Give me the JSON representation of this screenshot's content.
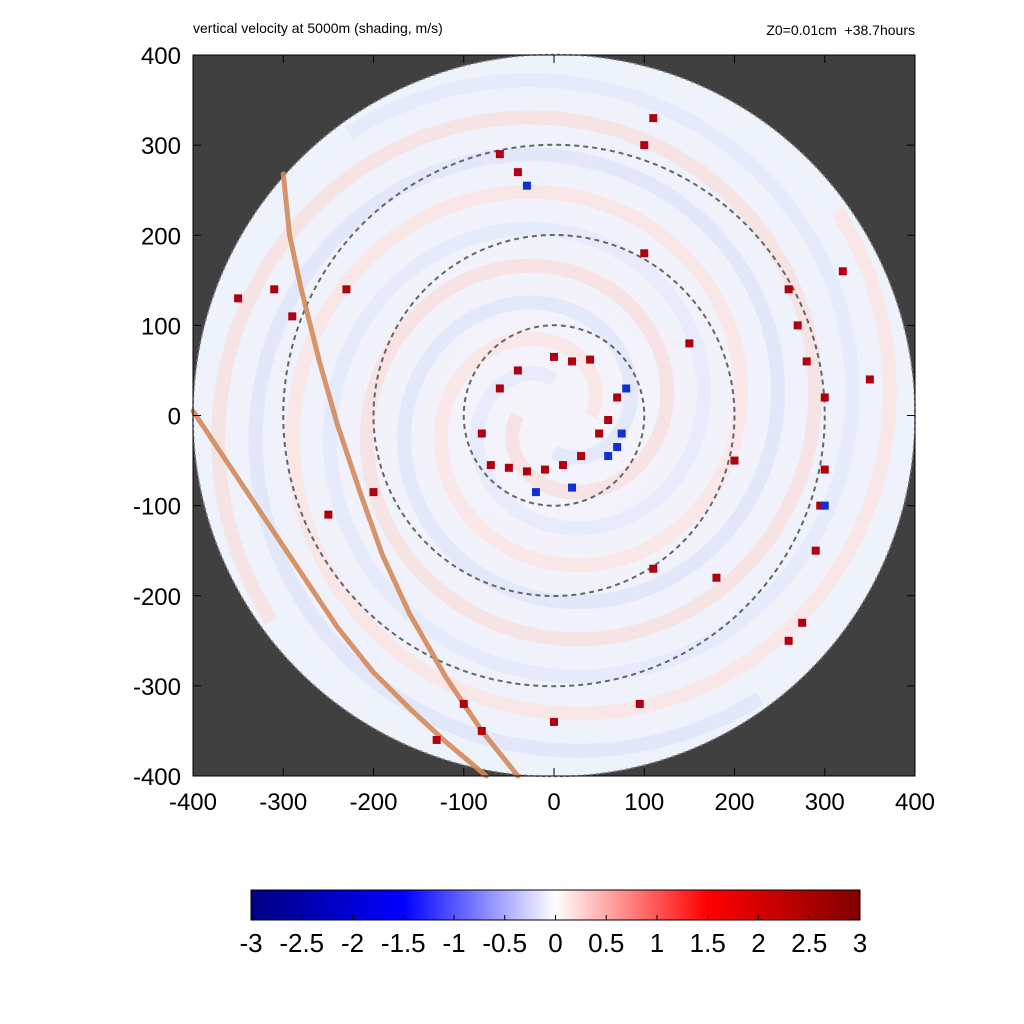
{
  "title": "vertical velocity at 5000m (shading, m/s)",
  "subtitle": "Z0=0.01cm  +38.7hours",
  "chart_data": {
    "type": "heatmap",
    "variable": "vertical velocity",
    "units": "m/s",
    "xlim": [
      -400,
      400
    ],
    "ylim": [
      -400,
      400
    ],
    "x_ticks": [
      "-400",
      "-300",
      "-200",
      "-100",
      "0",
      "100",
      "200",
      "300",
      "400"
    ],
    "y_ticks": [
      "400",
      "300",
      "200",
      "100",
      "0",
      "-100",
      "-200",
      "-300",
      "-400"
    ],
    "domain_radius": 400,
    "background_outside_domain": "#404040",
    "range_rings_radius": [
      100,
      200,
      300
    ],
    "colorbar": {
      "min": -3,
      "max": 3,
      "ticks": [
        "-3",
        "-2.5",
        "-2",
        "-1.5",
        "-1",
        "-0.5",
        "0",
        "0.5",
        "1",
        "1.5",
        "2",
        "2.5",
        "3"
      ],
      "colors": [
        "#000080",
        "#0000ff",
        "#ffffff",
        "#ff0000",
        "#800000"
      ]
    },
    "coastlines": [
      [
        [
          -300,
          268
        ],
        [
          -293,
          200
        ],
        [
          -280,
          140
        ],
        [
          -260,
          60
        ],
        [
          -240,
          -10
        ],
        [
          -215,
          -85
        ],
        [
          -190,
          -155
        ],
        [
          -160,
          -220
        ],
        [
          -120,
          -290
        ],
        [
          -80,
          -350
        ],
        [
          -40,
          -400
        ]
      ],
      [
        [
          -400,
          5
        ],
        [
          -360,
          -55
        ],
        [
          -320,
          -115
        ],
        [
          -280,
          -175
        ],
        [
          -240,
          -235
        ],
        [
          -200,
          -285
        ],
        [
          -160,
          -325
        ],
        [
          -120,
          -362
        ],
        [
          -75,
          -400
        ]
      ]
    ],
    "strong_updrafts": [
      [
        -70,
        -55
      ],
      [
        -50,
        -58
      ],
      [
        -30,
        -62
      ],
      [
        -10,
        -60
      ],
      [
        10,
        -55
      ],
      [
        30,
        -45
      ],
      [
        50,
        -20
      ],
      [
        60,
        -5
      ],
      [
        70,
        20
      ],
      [
        0,
        65
      ],
      [
        20,
        60
      ],
      [
        40,
        62
      ],
      [
        -40,
        50
      ],
      [
        -60,
        30
      ],
      [
        -80,
        -20
      ],
      [
        260,
        140
      ],
      [
        270,
        100
      ],
      [
        280,
        60
      ],
      [
        300,
        20
      ],
      [
        300,
        -60
      ],
      [
        295,
        -100
      ],
      [
        290,
        -150
      ],
      [
        275,
        -230
      ],
      [
        260,
        -250
      ],
      [
        -200,
        -85
      ],
      [
        -290,
        110
      ],
      [
        -310,
        140
      ],
      [
        -350,
        130
      ],
      [
        110,
        330
      ],
      [
        100,
        300
      ],
      [
        -60,
        290
      ],
      [
        -40,
        270
      ],
      [
        180,
        -180
      ],
      [
        110,
        -170
      ],
      [
        95,
        -320
      ],
      [
        -80,
        -350
      ],
      [
        0,
        -340
      ],
      [
        -130,
        -360
      ],
      [
        320,
        160
      ],
      [
        350,
        40
      ],
      [
        150,
        80
      ],
      [
        100,
        180
      ],
      [
        -100,
        -320
      ],
      [
        -230,
        140
      ],
      [
        -250,
        -110
      ],
      [
        200,
        -50
      ]
    ],
    "strong_downdrafts": [
      [
        75,
        -20
      ],
      [
        70,
        -35
      ],
      [
        60,
        -45
      ],
      [
        -20,
        -85
      ],
      [
        20,
        -80
      ],
      [
        300,
        -100
      ],
      [
        -30,
        255
      ],
      [
        80,
        30
      ]
    ]
  }
}
